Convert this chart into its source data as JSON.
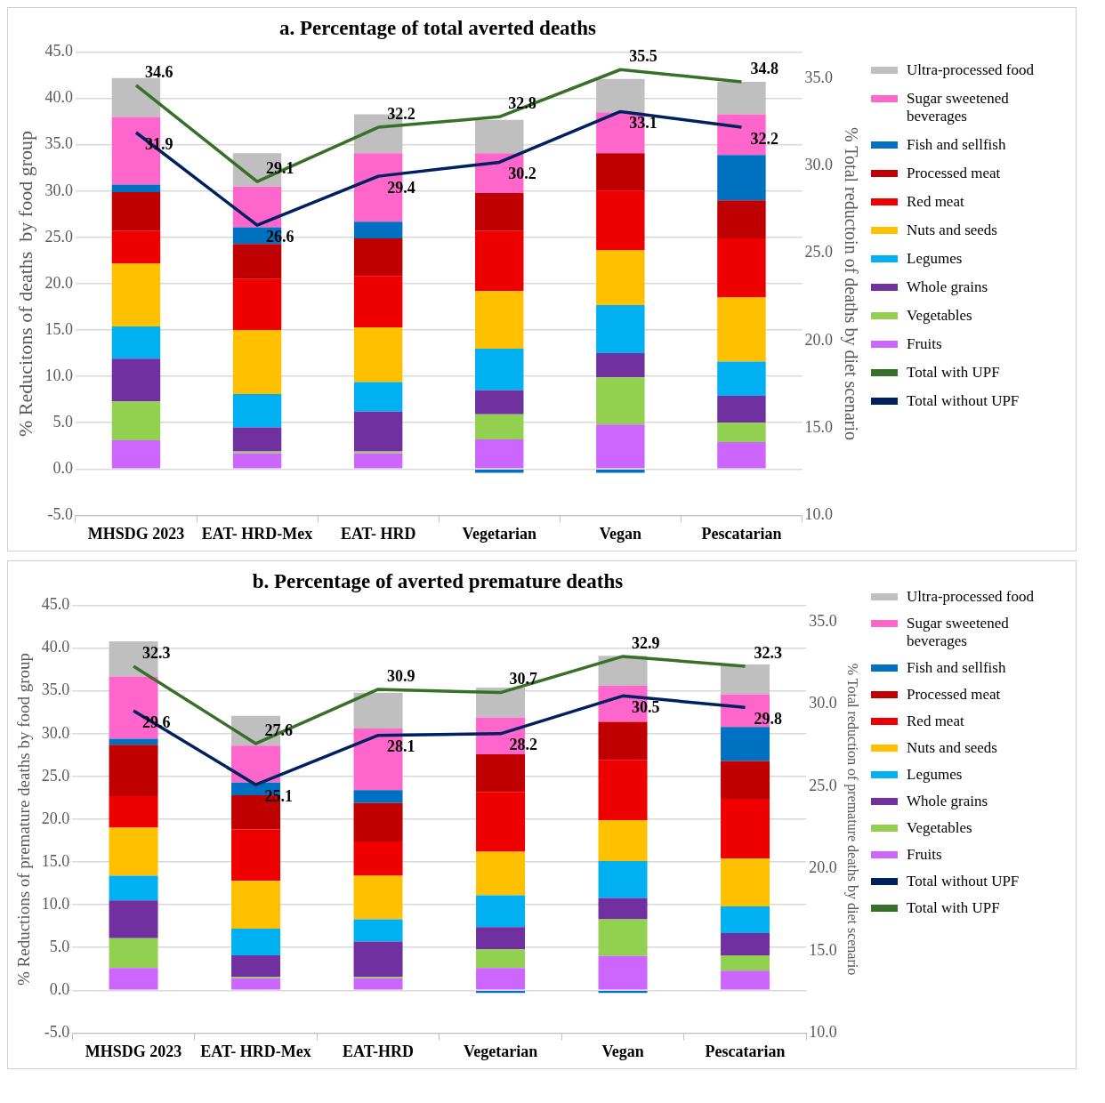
{
  "chart_data": [
    {
      "type": "bar",
      "title": "a. Percentage of total averted deaths",
      "ylabel": "% Reducitons of deaths  by food group",
      "y2label": "% Total reductoin of deaths by diet scenario",
      "stacked": true,
      "grid": "y",
      "legend": "right",
      "categories": [
        "MHSDG 2023",
        "EAT- HRD-Mex",
        "EAT- HRD",
        "Vegetarian",
        "Vegan",
        "Pescatarian"
      ],
      "ylim": [
        -5,
        45
      ],
      "yticks": [
        {
          "value": -5,
          "label": "-5.0"
        },
        {
          "value": 0,
          "label": "0.0"
        },
        {
          "value": 5,
          "label": "5.0"
        },
        {
          "value": 10,
          "label": "10.0"
        },
        {
          "value": 15,
          "label": "15.0"
        },
        {
          "value": 20,
          "label": "20.0"
        },
        {
          "value": 25,
          "label": "25.0"
        },
        {
          "value": 30,
          "label": "30.0"
        },
        {
          "value": 35,
          "label": "35.0"
        },
        {
          "value": 40,
          "label": "40.0"
        },
        {
          "value": 45,
          "label": "45.0"
        }
      ],
      "y2lim": [
        10,
        36.5
      ],
      "y2ticks": [
        {
          "value": 10,
          "label": "10.0"
        },
        {
          "value": 15,
          "label": "15.0"
        },
        {
          "value": 20,
          "label": "20.0"
        },
        {
          "value": 25,
          "label": "25.0"
        },
        {
          "value": 30,
          "label": "30.0"
        },
        {
          "value": 35,
          "label": "35.0"
        }
      ],
      "series": [
        {
          "name": "Total without UPF",
          "type": "line",
          "axis": "y2",
          "color": "#002060",
          "data_labels": true,
          "values": [
            31.9,
            26.6,
            29.4,
            30.2,
            33.1,
            32.2
          ]
        },
        {
          "name": "Total with UPF",
          "type": "line",
          "axis": "y2",
          "color": "#38702a",
          "data_labels": true,
          "values": [
            34.6,
            29.1,
            32.2,
            32.8,
            35.5,
            34.8
          ]
        },
        {
          "name": "Fruits",
          "color": "#cc66ff",
          "values": [
            3.1,
            1.7,
            1.7,
            3.2,
            4.8,
            2.9
          ]
        },
        {
          "name": "Vegetables",
          "color": "#92d050",
          "values": [
            4.2,
            0.2,
            0.2,
            2.7,
            5.1,
            2.1
          ]
        },
        {
          "name": "Whole grains",
          "color": "#7030a0",
          "values": [
            4.6,
            2.6,
            4.3,
            2.6,
            2.6,
            2.9
          ]
        },
        {
          "name": "Legumes",
          "color": "#00b0f0",
          "values": [
            3.5,
            3.6,
            3.2,
            4.5,
            5.2,
            3.7
          ]
        },
        {
          "name": "Nuts and seeds",
          "color": "#ffc000",
          "values": [
            6.8,
            6.9,
            5.9,
            6.2,
            5.9,
            6.9
          ]
        },
        {
          "name": "Red meat",
          "color": "#ee0000",
          "values": [
            3.5,
            5.5,
            5.5,
            6.5,
            6.4,
            6.4
          ]
        },
        {
          "name": "Processed meat",
          "color": "#c00000",
          "values": [
            4.2,
            3.8,
            4.1,
            4.1,
            4.1,
            4.1
          ]
        },
        {
          "name": "Fish and sellfish",
          "color": "#0070c0",
          "values": [
            0.8,
            1.8,
            1.8,
            -0.4,
            -0.4,
            4.9
          ]
        },
        {
          "name": "Sugar sweetened beverages",
          "color": "#ff66cc",
          "values": [
            7.3,
            4.4,
            7.4,
            4.3,
            4.4,
            4.4
          ]
        },
        {
          "name": "Ultra-processed food",
          "color": "#bfbfbf",
          "values": [
            4.2,
            3.6,
            4.2,
            3.6,
            3.6,
            3.5
          ]
        }
      ]
    },
    {
      "type": "bar",
      "title": "b. Percentage of averted premature deaths",
      "ylabel": "% Reductions of premature deaths by food group",
      "y2label": "% Total reduction of premature deaths by diet scenario",
      "stacked": true,
      "grid": "y",
      "legend": "right",
      "categories": [
        "MHSDG 2023",
        "EAT- HRD-Mex",
        "EAT-HRD",
        "Vegetarian",
        "Vegan",
        "Pescatarian"
      ],
      "ylim": [
        -5,
        45
      ],
      "yticks": [
        {
          "value": -5,
          "label": "-5.0"
        },
        {
          "value": 0,
          "label": "0.0"
        },
        {
          "value": 5,
          "label": "5.0"
        },
        {
          "value": 10,
          "label": "10.0"
        },
        {
          "value": 15,
          "label": "15.0"
        },
        {
          "value": 20,
          "label": "20.0"
        },
        {
          "value": 25,
          "label": "25.0"
        },
        {
          "value": 30,
          "label": "30.0"
        },
        {
          "value": 35,
          "label": "35.0"
        },
        {
          "value": 40,
          "label": "40.0"
        },
        {
          "value": 45,
          "label": "45.0"
        }
      ],
      "y2lim": [
        10,
        36
      ],
      "y2ticks": [
        {
          "value": 10,
          "label": "10.0"
        },
        {
          "value": 15,
          "label": "15.0"
        },
        {
          "value": 20,
          "label": "20.0"
        },
        {
          "value": 25,
          "label": "25.0"
        },
        {
          "value": 30,
          "label": "30.0"
        },
        {
          "value": 35,
          "label": "35.0"
        }
      ],
      "series": [
        {
          "name": "Total with UPF",
          "type": "line",
          "axis": "y2",
          "color": "#38702a",
          "data_labels": true,
          "values": [
            32.3,
            27.6,
            30.9,
            30.7,
            32.9,
            32.3
          ]
        },
        {
          "name": "Total without UPF",
          "type": "line",
          "axis": "y2",
          "color": "#002060",
          "data_labels": true,
          "values": [
            29.6,
            25.1,
            28.1,
            28.2,
            30.5,
            29.8
          ]
        },
        {
          "name": "Fruits",
          "color": "#cc66ff",
          "values": [
            2.6,
            1.4,
            1.4,
            2.6,
            4.0,
            2.3
          ]
        },
        {
          "name": "Vegetables",
          "color": "#92d050",
          "values": [
            3.5,
            0.2,
            0.2,
            2.2,
            4.3,
            1.8
          ]
        },
        {
          "name": "Whole grains",
          "color": "#7030a0",
          "values": [
            4.4,
            2.5,
            4.1,
            2.6,
            2.5,
            2.6
          ]
        },
        {
          "name": "Legumes",
          "color": "#00b0f0",
          "values": [
            2.9,
            3.1,
            2.6,
            3.7,
            4.3,
            3.1
          ]
        },
        {
          "name": "Nuts and seeds",
          "color": "#ffc000",
          "values": [
            5.6,
            5.6,
            5.1,
            5.1,
            4.8,
            5.6
          ]
        },
        {
          "name": "Red meat",
          "color": "#ee0000",
          "values": [
            3.7,
            6.0,
            4.0,
            7.0,
            7.0,
            7.0
          ]
        },
        {
          "name": "Processed meat",
          "color": "#c00000",
          "values": [
            6.0,
            4.0,
            4.5,
            4.4,
            4.5,
            4.4
          ]
        },
        {
          "name": "Fish and sellfish",
          "color": "#0070c0",
          "values": [
            0.7,
            1.5,
            1.5,
            -0.3,
            -0.3,
            4.0
          ]
        },
        {
          "name": "Sugar sweetened beverages",
          "color": "#ff66cc",
          "values": [
            7.3,
            4.3,
            7.2,
            4.3,
            4.2,
            3.8
          ]
        },
        {
          "name": "Ultra-processed food",
          "color": "#bfbfbf",
          "values": [
            4.1,
            3.5,
            4.2,
            3.5,
            3.5,
            3.5
          ]
        }
      ]
    }
  ]
}
